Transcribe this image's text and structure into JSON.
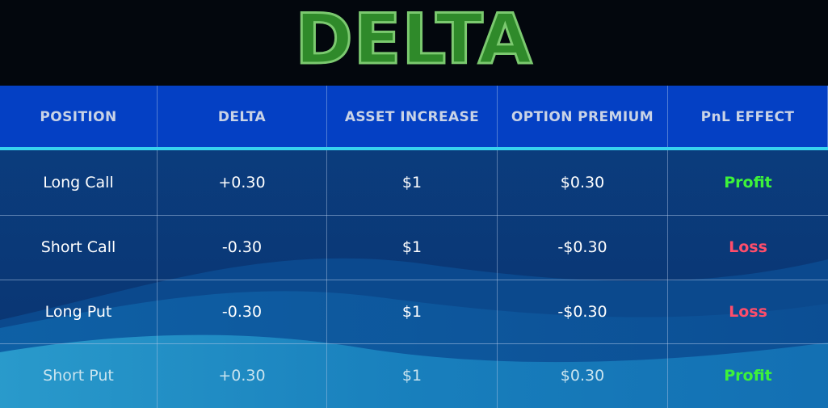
{
  "title": "DELTA",
  "table": {
    "headers": [
      "POSITION",
      "DELTA",
      "ASSET INCREASE",
      "OPTION PREMIUM",
      "PnL EFFECT"
    ],
    "rows": [
      {
        "position": "Long Call",
        "delta": "+0.30",
        "asset_increase": "$1",
        "option_premium": "$0.30",
        "pnl_effect": "Profit"
      },
      {
        "position": "Short Call",
        "delta": "-0.30",
        "asset_increase": "$1",
        "option_premium": "-$0.30",
        "pnl_effect": "Loss"
      },
      {
        "position": "Long Put",
        "delta": "-0.30",
        "asset_increase": "$1",
        "option_premium": "-$0.30",
        "pnl_effect": "Loss"
      },
      {
        "position": "Short Put",
        "delta": "+0.30",
        "asset_increase": "$1",
        "option_premium": "$0.30",
        "pnl_effect": "Profit"
      }
    ]
  },
  "colors": {
    "title_fill": "#2f8a2a",
    "header_bg": "#0440c4",
    "header_accent_line": "#37d3ef",
    "profit": "#3df23a",
    "loss": "#ff4d6b"
  }
}
